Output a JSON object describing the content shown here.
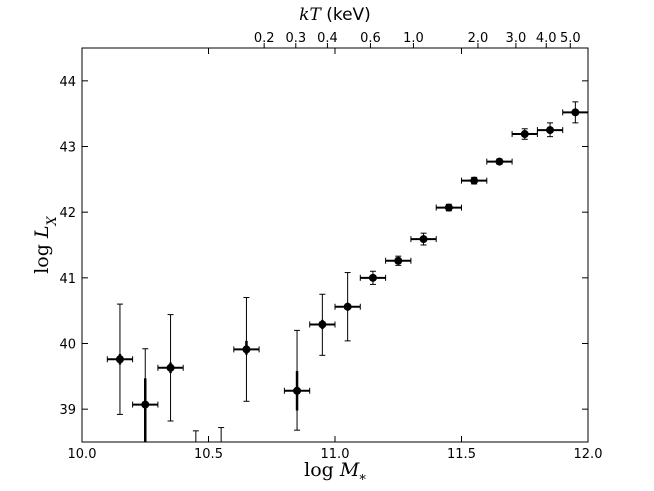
{
  "chart_data": {
    "type": "scatter",
    "xlabel_text": "log ",
    "xlabel_var": "M",
    "xlabel_sub": "*",
    "ylabel_text": "log ",
    "ylabel_var": "L",
    "ylabel_sub": "X",
    "top_label_var": "kT",
    "top_label_unit": " (keV)",
    "xlim": [
      10.0,
      12.0
    ],
    "ylim": [
      38.5,
      44.5
    ],
    "x_ticks": [
      "10.0",
      "10.5",
      "11.0",
      "11.5",
      "12.0"
    ],
    "y_ticks": [
      "39",
      "40",
      "41",
      "42",
      "43",
      "44"
    ],
    "top_ticks": [
      {
        "label": "0.2",
        "x": 10.72
      },
      {
        "label": "0.3",
        "x": 10.845
      },
      {
        "label": "0.4",
        "x": 10.97
      },
      {
        "label": "0.6",
        "x": 11.14
      },
      {
        "label": "1.0",
        "x": 11.31
      },
      {
        "label": "2.0",
        "x": 11.565
      },
      {
        "label": "3.0",
        "x": 11.715
      },
      {
        "label": "4.0",
        "x": 11.835
      },
      {
        "label": "5.0",
        "x": 11.93
      }
    ],
    "points": [
      {
        "x": 10.15,
        "y": 39.76,
        "xerr": 0.05,
        "y_lo": 38.92,
        "y_hi": 40.6,
        "y_lo2": 39.68,
        "y_hi2": 39.84
      },
      {
        "x": 10.25,
        "y": 39.07,
        "xerr": 0.05,
        "y_lo": 38.5,
        "y_hi": 39.92,
        "y_lo2": 38.5,
        "y_hi2": 39.47
      },
      {
        "x": 10.35,
        "y": 39.63,
        "xerr": 0.05,
        "y_lo": 38.82,
        "y_hi": 40.44,
        "y_lo2": 39.55,
        "y_hi2": 39.71
      },
      {
        "x": 10.65,
        "y": 39.91,
        "xerr": 0.05,
        "y_lo": 39.12,
        "y_hi": 40.7,
        "y_lo2": 39.83,
        "y_hi2": 40.04
      },
      {
        "x": 10.85,
        "y": 39.28,
        "xerr": 0.05,
        "y_lo": 38.68,
        "y_hi": 40.2,
        "y_lo2": 38.98,
        "y_hi2": 39.58
      },
      {
        "x": 10.95,
        "y": 40.29,
        "xerr": 0.05,
        "y_lo": 39.82,
        "y_hi": 40.75,
        "y_lo2": 40.22,
        "y_hi2": 40.36
      },
      {
        "x": 11.05,
        "y": 40.56,
        "xerr": 0.05,
        "y_lo": 40.04,
        "y_hi": 41.08,
        "y_lo2": 40.5,
        "y_hi2": 40.62
      },
      {
        "x": 11.15,
        "y": 41.0,
        "xerr": 0.05,
        "y_lo": 40.9,
        "y_hi": 41.1
      },
      {
        "x": 11.25,
        "y": 41.26,
        "xerr": 0.05,
        "y_lo": 41.19,
        "y_hi": 41.33
      },
      {
        "x": 11.35,
        "y": 41.59,
        "xerr": 0.05,
        "y_lo": 41.5,
        "y_hi": 41.68
      },
      {
        "x": 11.45,
        "y": 42.07,
        "xerr": 0.05,
        "y_lo": 42.02,
        "y_hi": 42.12
      },
      {
        "x": 11.55,
        "y": 42.48,
        "xerr": 0.05,
        "y_lo": 42.43,
        "y_hi": 42.53
      },
      {
        "x": 11.65,
        "y": 42.77,
        "xerr": 0.05,
        "y_lo": 42.73,
        "y_hi": 42.81
      },
      {
        "x": 11.75,
        "y": 43.19,
        "xerr": 0.05,
        "y_lo": 43.11,
        "y_hi": 43.27
      },
      {
        "x": 11.85,
        "y": 43.25,
        "xerr": 0.05,
        "y_lo": 43.15,
        "y_hi": 43.36
      },
      {
        "x": 11.95,
        "y": 43.52,
        "xerr": 0.05,
        "y_lo": 43.36,
        "y_hi": 43.68
      }
    ],
    "upper_limits": [
      {
        "x": 10.45,
        "y_top": 38.67
      },
      {
        "x": 10.55,
        "y_top": 38.72
      }
    ]
  }
}
